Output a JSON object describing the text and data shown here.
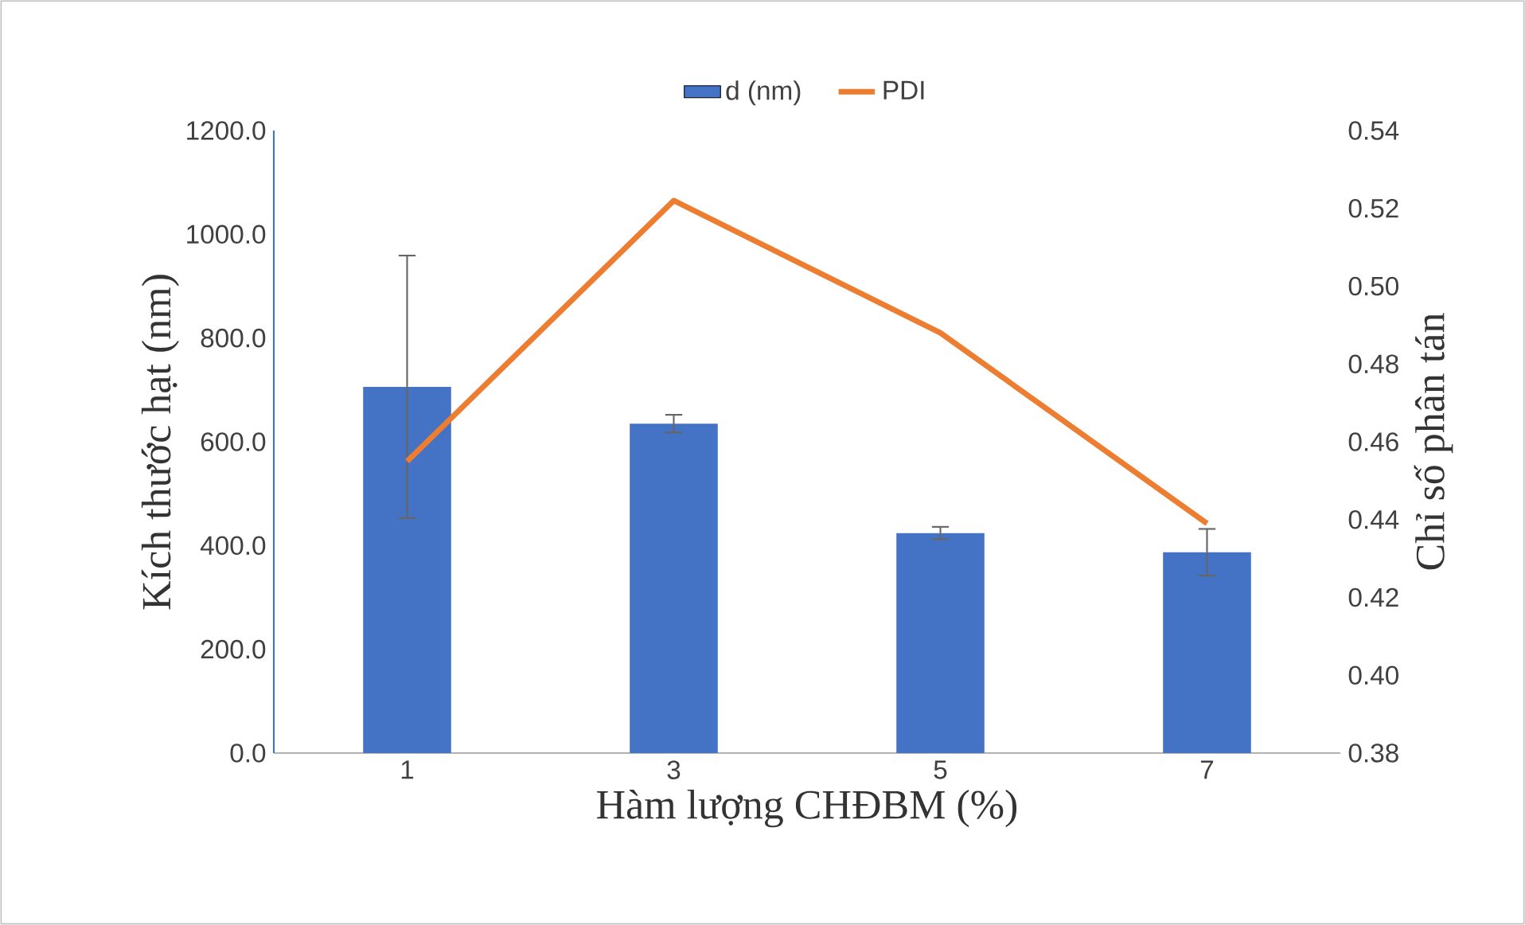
{
  "chart_data": {
    "type": "bar",
    "xlabel": "Hàm lượng CHĐBM (%)",
    "ylabel": "Kích thước hạt (nm)",
    "y2label": "Chỉ số phân tán",
    "categories": [
      "1",
      "3",
      "5",
      "7"
    ],
    "series": [
      {
        "name": "d (nm)",
        "color": "#4472c4",
        "values": [
          706,
          635,
          424,
          387
        ],
        "errors": [
          253,
          17,
          12,
          45
        ]
      },
      {
        "name": "PDI",
        "type": "line",
        "axis": "y2",
        "color": "#ed7d31",
        "values": [
          0.455,
          0.522,
          0.488,
          0.439
        ]
      }
    ],
    "ylim": [
      0,
      1200
    ],
    "yticks": [
      {
        "value": 0,
        "label": "0.0"
      },
      {
        "value": 200,
        "label": "200.0"
      },
      {
        "value": 400,
        "label": "400.0"
      },
      {
        "value": 600,
        "label": "600.0"
      },
      {
        "value": 800,
        "label": "800.0"
      },
      {
        "value": 1000,
        "label": "1000.0"
      },
      {
        "value": 1200,
        "label": "1200.0"
      }
    ],
    "y2lim": [
      0.38,
      0.54
    ],
    "y2ticks": [
      {
        "value": 0.38,
        "label": "0.38"
      },
      {
        "value": 0.4,
        "label": "0.40"
      },
      {
        "value": 0.42,
        "label": "0.42"
      },
      {
        "value": 0.44,
        "label": "0.44"
      },
      {
        "value": 0.46,
        "label": "0.46"
      },
      {
        "value": 0.48,
        "label": "0.48"
      },
      {
        "value": 0.5,
        "label": "0.50"
      },
      {
        "value": 0.52,
        "label": "0.52"
      },
      {
        "value": 0.54,
        "label": "0.54"
      }
    ],
    "legend": "top",
    "grid": false
  }
}
